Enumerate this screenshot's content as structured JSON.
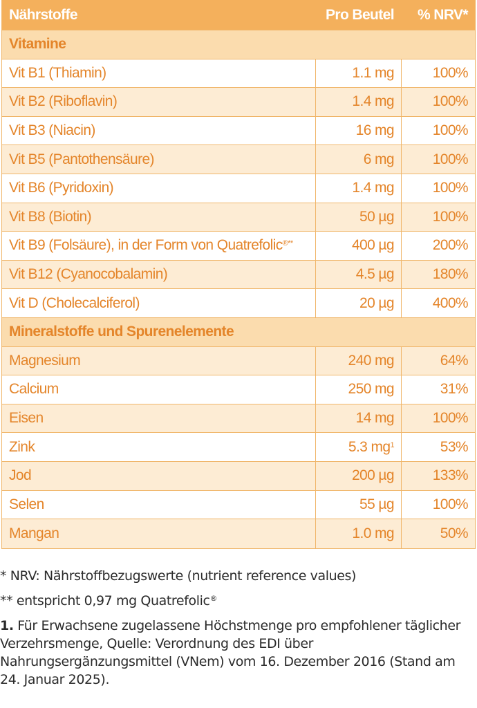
{
  "table": {
    "header": {
      "col1": "Nährstoffe",
      "col2": "Pro Beutel",
      "col3": "% NRV*"
    },
    "sections": [
      {
        "title": "Vitamine",
        "rows": [
          {
            "name": "Vit B1 (Thiamin)",
            "amount": "1.1 mg",
            "nrv": "100%"
          },
          {
            "name": "Vit B2 (Riboflavin)",
            "amount": "1.4 mg",
            "nrv": "100%"
          },
          {
            "name": "Vit B3 (Niacin)",
            "amount": "16 mg",
            "nrv": "100%"
          },
          {
            "name": "Vit B5 (Pantothensäure)",
            "amount": "6 mg",
            "nrv": "100%"
          },
          {
            "name": "Vit B6 (Pyridoxin)",
            "amount": "1.4 mg",
            "nrv": "100%"
          },
          {
            "name": "Vit B8 (Biotin)",
            "amount": "50 µg",
            "nrv": "100%"
          },
          {
            "name": "Vit B9 (Folsäure), in der Form von Quatrefolic",
            "name_suffix": "®**",
            "amount": "400 µg",
            "nrv": "200%"
          },
          {
            "name": "Vit B12 (Cyanocobalamin)",
            "amount": "4.5 µg",
            "nrv": "180%"
          },
          {
            "name": "Vit D (Cholecalciferol)",
            "amount": "20 µg",
            "nrv": "400%"
          }
        ]
      },
      {
        "title": "Mineralstoffe und Spurenelemente",
        "rows": [
          {
            "name": "Magnesium",
            "amount": "240 mg",
            "nrv": "64%"
          },
          {
            "name": "Calcium",
            "amount": "250 mg",
            "nrv": "31%"
          },
          {
            "name": "Eisen",
            "amount": "14 mg",
            "nrv": "100%"
          },
          {
            "name": "Zink",
            "amount": "5.3 mg",
            "amount_sup": "1",
            "nrv": "53%"
          },
          {
            "name": "Jod",
            "amount": "200 µg",
            "nrv": "133%"
          },
          {
            "name": "Selen",
            "amount": "55 µg",
            "nrv": "100%"
          },
          {
            "name": "Mangan",
            "amount": "1.0 mg",
            "nrv": "50%"
          }
        ]
      }
    ]
  },
  "notes": {
    "nrv": "* NRV: Nährstoffbezugswerte (nutrient reference values)",
    "quatrefolic_prefix": "** entspricht 0,97 mg Quatrefolic",
    "quatrefolic_mark": "®",
    "footnote_number": "1.",
    "footnote_text": " Für Erwachsene zugelassene Höchstmenge pro empfohlener täglicher Verzehrsmenge, Quelle: Verordnung des EDI über Nahrungsergänzungsmittel (VNem) vom 16. Dezember 2016 (Stand am 24. Januar 2025)."
  },
  "colors": {
    "accent": "#f4b05c",
    "text_orange": "#e4852a",
    "section_bg": "#fbdcae",
    "stripe_bg": "#fdecd4"
  }
}
